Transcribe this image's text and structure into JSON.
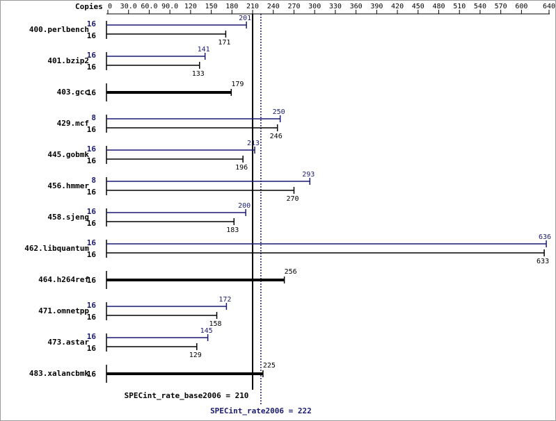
{
  "chart_data": {
    "type": "bar",
    "orientation": "horizontal",
    "axis_label": "Copies",
    "xlim": [
      0,
      640
    ],
    "xticks": [
      0,
      {
        "value": 30,
        "label": "30.0"
      },
      {
        "value": 60,
        "label": "60.0"
      },
      {
        "value": 90,
        "label": "90.0"
      },
      120,
      150,
      180,
      210,
      240,
      270,
      300,
      330,
      360,
      390,
      420,
      450,
      480,
      510,
      540,
      570,
      600,
      640
    ],
    "peak_color": "#191970",
    "base_color": "#000000",
    "benchmarks": [
      {
        "name": "400.perlbench",
        "peak": {
          "copies": 16,
          "value": 201
        },
        "base": {
          "copies": 16,
          "value": 171
        }
      },
      {
        "name": "401.bzip2",
        "peak": {
          "copies": 16,
          "value": 141
        },
        "base": {
          "copies": 16,
          "value": 133
        }
      },
      {
        "name": "403.gcc",
        "base": {
          "copies": 16,
          "value": 179
        }
      },
      {
        "name": "429.mcf",
        "peak": {
          "copies": 8,
          "value": 250
        },
        "base": {
          "copies": 16,
          "value": 246
        }
      },
      {
        "name": "445.gobmk",
        "peak": {
          "copies": 16,
          "value": 213
        },
        "base": {
          "copies": 16,
          "value": 196
        }
      },
      {
        "name": "456.hmmer",
        "peak": {
          "copies": 8,
          "value": 293
        },
        "base": {
          "copies": 16,
          "value": 270
        }
      },
      {
        "name": "458.sjeng",
        "peak": {
          "copies": 16,
          "value": 200
        },
        "base": {
          "copies": 16,
          "value": 183
        }
      },
      {
        "name": "462.libquantum",
        "peak": {
          "copies": 16,
          "value": 636
        },
        "base": {
          "copies": 16,
          "value": 633
        }
      },
      {
        "name": "464.h264ref",
        "base": {
          "copies": 16,
          "value": 256
        }
      },
      {
        "name": "471.omnetpp",
        "peak": {
          "copies": 16,
          "value": 172
        },
        "base": {
          "copies": 16,
          "value": 158
        }
      },
      {
        "name": "473.astar",
        "peak": {
          "copies": 16,
          "value": 145
        },
        "base": {
          "copies": 16,
          "value": 129
        }
      },
      {
        "name": "483.xalancbmk",
        "base": {
          "copies": 16,
          "value": 225
        }
      }
    ],
    "reference_lines": [
      {
        "label": "SPECint_rate_base2006 = 210",
        "value": 210,
        "color": "#000000",
        "style": "solid"
      },
      {
        "label": "SPECint_rate2006 = 222",
        "value": 222,
        "color": "#191970",
        "style": "dotted"
      }
    ]
  }
}
